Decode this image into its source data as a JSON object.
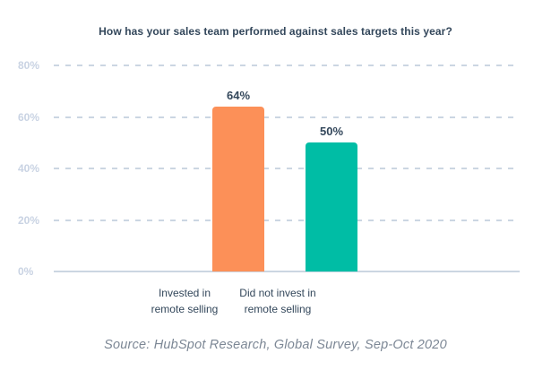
{
  "title": "How has your sales team performed against sales targets this year?",
  "source": "Source: HubSpot Research, Global Survey, Sep-Oct 2020",
  "colors": {
    "bar_invested": "#fc9058",
    "bar_not_invested": "#00bda5",
    "title_text": "#33475b",
    "value_label_text": "#33475b",
    "ytick_text": "#c9d3e3",
    "gridline": "#cbd6e2",
    "source_text": "#7c8795",
    "background": "#ffffff"
  },
  "chart_data": {
    "type": "bar",
    "title": "How has your sales team performed against sales targets this year?",
    "categories": [
      "Invested in\nremote selling",
      "Did not invest in\nremote selling"
    ],
    "values": [
      64,
      50
    ],
    "value_labels": [
      "64%",
      "50%"
    ],
    "bar_colors": [
      "#fc9058",
      "#00bda5"
    ],
    "xlabel": "",
    "ylabel": "",
    "ylim": [
      0,
      80
    ],
    "ytick_values": [
      0,
      20,
      40,
      60,
      80
    ],
    "ytick_labels": [
      "0%",
      "20%",
      "40%",
      "60%",
      "80%"
    ],
    "grid": "horizontal-dashed",
    "baseline": "solid",
    "legend_position": "none",
    "annotation": "Source: HubSpot Research, Global Survey, Sep-Oct 2020"
  }
}
